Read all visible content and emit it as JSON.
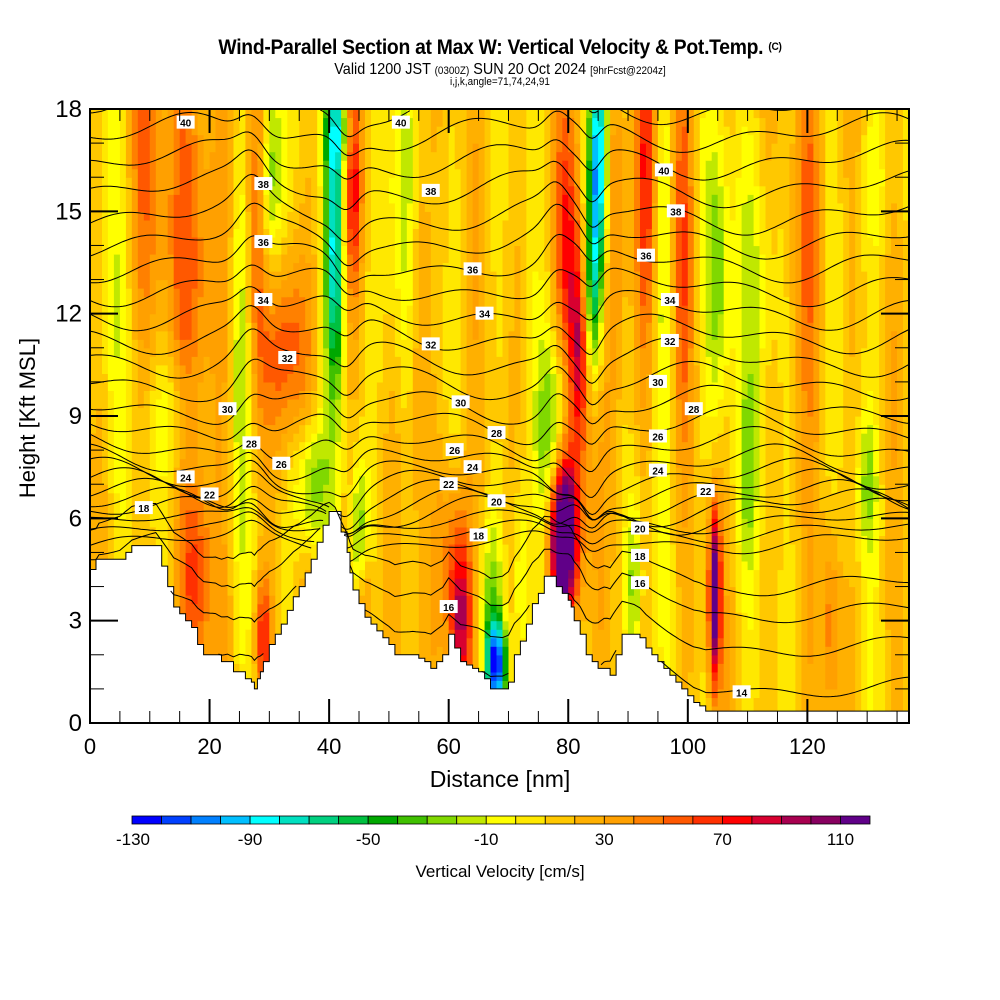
{
  "header": {
    "title": "Wind-Parallel Section at Max W: Vertical Velocity & Pot.Temp.",
    "copyright": "(C)",
    "valid_prefix": "Valid 1200 JST",
    "valid_utc": "(0300Z)",
    "valid_date": "SUN 20 Oct 2024",
    "forecast": "[9hrFcst@2204z]",
    "indices": "i,j,k,angle=71,74,24,91"
  },
  "chart_data": {
    "type": "heatmap",
    "title": "Wind-Parallel Section at Max W: Vertical Velocity & Pot.Temp.",
    "xlabel": "Distance [nm]",
    "ylabel": "Height [Kft MSL]",
    "xlim": [
      0,
      137
    ],
    "ylim": [
      0,
      18
    ],
    "xticks": [
      0,
      20,
      40,
      60,
      80,
      100,
      120
    ],
    "yticks": [
      0,
      3,
      6,
      9,
      12,
      15,
      18
    ],
    "colorbar": {
      "label": "Vertical Velocity [cm/s]",
      "tick_labels": [
        "-130",
        "-90",
        "-50",
        "-10",
        "30",
        "70",
        "110"
      ],
      "levels": [
        -130,
        -120,
        -110,
        -100,
        -90,
        -80,
        -70,
        -60,
        -50,
        -40,
        -30,
        -20,
        -10,
        0,
        10,
        20,
        30,
        40,
        50,
        60,
        70,
        80,
        90,
        100,
        110,
        120
      ],
      "colors": [
        "#0000ff",
        "#0040ff",
        "#0080ff",
        "#00bfff",
        "#00ffff",
        "#00e0c0",
        "#00d080",
        "#00c040",
        "#00a800",
        "#40c000",
        "#80d800",
        "#c0e800",
        "#ffff00",
        "#ffe800",
        "#ffc800",
        "#ffb000",
        "#ffa000",
        "#ff8000",
        "#ff5800",
        "#ff3000",
        "#ff0000",
        "#d80030",
        "#a80050",
        "#880060",
        "#600088"
      ]
    },
    "background_w": 15,
    "w_features": [
      {
        "x": 4,
        "z": 14,
        "sx": 2.5,
        "sz": 5,
        "w": -25
      },
      {
        "x": 8,
        "z": 16,
        "sx": 3,
        "sz": 4,
        "w": 30
      },
      {
        "x": 18,
        "z": 14,
        "sx": 4,
        "sz": 5,
        "w": 35
      },
      {
        "x": 18,
        "z": 4,
        "sx": 2,
        "sz": 2,
        "w": 40
      },
      {
        "x": 14,
        "z": 9,
        "sx": 3,
        "sz": 1.5,
        "w": -25
      },
      {
        "x": 25,
        "z": 11,
        "sx": 1.2,
        "sz": 5,
        "w": -30
      },
      {
        "x": 28,
        "z": 15,
        "sx": 1.3,
        "sz": 4,
        "w": 45
      },
      {
        "x": 30,
        "z": 16,
        "sx": 1.5,
        "sz": 2.5,
        "w": -60
      },
      {
        "x": 29,
        "z": 2.5,
        "sx": 1,
        "sz": 1.2,
        "w": 55
      },
      {
        "x": 33,
        "z": 11,
        "sx": 2.5,
        "sz": 2,
        "w": 45
      },
      {
        "x": 37,
        "z": 7,
        "sx": 2,
        "sz": 1.5,
        "w": -50
      },
      {
        "x": 41,
        "z": 14,
        "sx": 1.1,
        "sz": 3,
        "w": -90
      },
      {
        "x": 42,
        "z": 17.5,
        "sx": 2,
        "sz": 1,
        "w": -60
      },
      {
        "x": 44,
        "z": 17,
        "sx": 1.2,
        "sz": 3,
        "w": 65
      },
      {
        "x": 45,
        "z": 5.5,
        "sx": 1,
        "sz": 1.5,
        "w": -45
      },
      {
        "x": 46,
        "z": 3.5,
        "sx": 1,
        "sz": 1.5,
        "w": 35
      },
      {
        "x": 52,
        "z": 15,
        "sx": 3,
        "sz": 4,
        "w": -30
      },
      {
        "x": 55,
        "z": 13,
        "sx": 1.2,
        "sz": 5,
        "w": 35
      },
      {
        "x": 62,
        "z": 2.8,
        "sx": 1.3,
        "sz": 1.6,
        "w": 75
      },
      {
        "x": 61,
        "z": 5,
        "sx": 2,
        "sz": 2,
        "w": 40
      },
      {
        "x": 68,
        "z": 1.7,
        "sx": 1.2,
        "sz": 0.9,
        "w": -120
      },
      {
        "x": 67,
        "z": 3.5,
        "sx": 1.5,
        "sz": 2,
        "w": -40
      },
      {
        "x": 72,
        "z": 4,
        "sx": 1,
        "sz": 2.5,
        "w": -35
      },
      {
        "x": 79,
        "z": 5.5,
        "sx": 1.4,
        "sz": 1.4,
        "w": 110
      },
      {
        "x": 80,
        "z": 6,
        "sx": 2,
        "sz": 2.5,
        "w": 70
      },
      {
        "x": 78,
        "z": 8.5,
        "sx": 2,
        "sz": 2,
        "w": -60
      },
      {
        "x": 82,
        "z": 11,
        "sx": 1.2,
        "sz": 2,
        "w": 70
      },
      {
        "x": 80,
        "z": 14,
        "sx": 1.5,
        "sz": 3,
        "w": 50
      },
      {
        "x": 85,
        "z": 16.5,
        "sx": 1.1,
        "sz": 2.5,
        "w": -125
      },
      {
        "x": 84,
        "z": 12.5,
        "sx": 1.1,
        "sz": 2,
        "w": -70
      },
      {
        "x": 88,
        "z": 15,
        "sx": 1.3,
        "sz": 4,
        "w": 40
      },
      {
        "x": 91,
        "z": 4,
        "sx": 1,
        "sz": 2,
        "w": -40
      },
      {
        "x": 93,
        "z": 16,
        "sx": 1.5,
        "sz": 4,
        "w": 50
      },
      {
        "x": 96,
        "z": 14,
        "sx": 1.3,
        "sz": 4,
        "w": -30
      },
      {
        "x": 99,
        "z": 14,
        "sx": 1.3,
        "sz": 4,
        "w": 35
      },
      {
        "x": 104.5,
        "z": 3.7,
        "sx": 0.7,
        "sz": 1.8,
        "w": 115
      },
      {
        "x": 105,
        "z": 13,
        "sx": 1.5,
        "sz": 3,
        "w": -40
      },
      {
        "x": 110,
        "z": 7,
        "sx": 1.5,
        "sz": 2,
        "w": -25
      },
      {
        "x": 112,
        "z": 13,
        "sx": 3,
        "sz": 3,
        "w": -25
      },
      {
        "x": 120,
        "z": 15,
        "sx": 2,
        "sz": 4,
        "w": 35
      },
      {
        "x": 124,
        "z": 3,
        "sx": 1,
        "sz": 2,
        "w": 35
      },
      {
        "x": 130,
        "z": 7,
        "sx": 1.3,
        "sz": 1.5,
        "w": -30
      },
      {
        "x": 132,
        "z": 16,
        "sx": 2,
        "sz": 2,
        "w": -20
      }
    ],
    "terrain": {
      "x": [
        0,
        1,
        1,
        3,
        3,
        5,
        5,
        6,
        7,
        8,
        9,
        10,
        11,
        12,
        13,
        14,
        15,
        16,
        17,
        18,
        19,
        20,
        21,
        22,
        23,
        24,
        25,
        26,
        27,
        27.5,
        28,
        28.5,
        29,
        30,
        31,
        32,
        33,
        34,
        35,
        36,
        37,
        38,
        39,
        40,
        40.5,
        41,
        42,
        43,
        43.5,
        44,
        45,
        46,
        47,
        48,
        49,
        50,
        51,
        52,
        53,
        54,
        55,
        56,
        57,
        58,
        59,
        60,
        61,
        62,
        63,
        64,
        65,
        66,
        67,
        68,
        69,
        70,
        71,
        72,
        73,
        74,
        75,
        76,
        77,
        78,
        79,
        80,
        80.5,
        81,
        82,
        83,
        84,
        85,
        86,
        87,
        88,
        89,
        90,
        91,
        92,
        93,
        94,
        95,
        96,
        97,
        98,
        99,
        100,
        101,
        102,
        103,
        104,
        105,
        106,
        107,
        110,
        115,
        120,
        125,
        130,
        135,
        137
      ],
      "z": [
        4.5,
        4.5,
        4.8,
        4.8,
        4.8,
        4.8,
        4.8,
        5.0,
        5.2,
        5.2,
        5.2,
        5.2,
        5.2,
        4.6,
        4.0,
        3.4,
        3.2,
        3.0,
        2.8,
        2.3,
        2.0,
        2.0,
        2.0,
        1.8,
        1.8,
        1.5,
        1.5,
        1.3,
        1.2,
        1.0,
        1.3,
        1.5,
        1.8,
        2.3,
        2.6,
        2.9,
        3.3,
        3.7,
        4.0,
        4.4,
        4.8,
        5.3,
        5.8,
        6.2,
        6.2,
        6.2,
        5.6,
        5.0,
        4.4,
        3.9,
        3.5,
        3.1,
        2.9,
        2.7,
        2.5,
        2.3,
        2.0,
        2.0,
        2.0,
        2.0,
        1.9,
        1.8,
        1.6,
        1.8,
        2.0,
        2.6,
        2.2,
        1.8,
        1.7,
        1.6,
        1.5,
        1.3,
        1.0,
        1.0,
        1.0,
        1.2,
        2.0,
        2.4,
        2.9,
        3.5,
        3.8,
        4.3,
        4.3,
        4.0,
        3.8,
        3.6,
        3.4,
        3.0,
        2.6,
        2.0,
        1.8,
        1.6,
        1.6,
        1.4,
        2.0,
        2.6,
        2.6,
        2.6,
        2.5,
        2.2,
        2.0,
        1.8,
        1.6,
        1.4,
        1.2,
        1.0,
        0.8,
        0.6,
        0.5,
        0.35,
        0.35,
        0.35,
        0.35,
        0.35,
        0.35,
        0.35,
        0.35,
        0.35,
        0.35,
        0.35,
        0.35,
        0.35,
        0.35,
        0.35
      ]
    },
    "isentropes": {
      "units": "Pot.Temp contour labels",
      "levels": [
        14,
        15,
        16,
        17,
        18,
        19,
        20,
        21,
        22,
        23,
        24,
        25,
        26,
        27,
        28,
        29,
        30,
        31,
        32,
        33,
        34,
        35,
        36,
        37,
        38,
        39,
        40,
        41,
        42
      ],
      "base_height": [
        0.5,
        1.8,
        3.0,
        4.0,
        4.8,
        5.3,
        5.6,
        5.9,
        6.1,
        6.35,
        6.6,
        6.9,
        7.2,
        7.6,
        8.1,
        8.7,
        9.3,
        10.0,
        10.7,
        11.4,
        12.1,
        12.8,
        13.5,
        14.2,
        14.9,
        15.7,
        16.5,
        17.3,
        18.1
      ],
      "labels": [
        {
          "text": "40",
          "x": 16,
          "z": 17.6
        },
        {
          "text": "40",
          "x": 52,
          "z": 17.6
        },
        {
          "text": "40",
          "x": 96,
          "z": 16.2
        },
        {
          "text": "38",
          "x": 29,
          "z": 15.8
        },
        {
          "text": "38",
          "x": 57,
          "z": 15.6
        },
        {
          "text": "38",
          "x": 98,
          "z": 15.0
        },
        {
          "text": "36",
          "x": 29,
          "z": 14.1
        },
        {
          "text": "36",
          "x": 64,
          "z": 13.3
        },
        {
          "text": "36",
          "x": 93,
          "z": 13.7
        },
        {
          "text": "34",
          "x": 29,
          "z": 12.4
        },
        {
          "text": "34",
          "x": 66,
          "z": 12.0
        },
        {
          "text": "34",
          "x": 97,
          "z": 12.4
        },
        {
          "text": "32",
          "x": 33,
          "z": 10.7
        },
        {
          "text": "32",
          "x": 57,
          "z": 11.1
        },
        {
          "text": "32",
          "x": 97,
          "z": 11.2
        },
        {
          "text": "30",
          "x": 23,
          "z": 9.2
        },
        {
          "text": "30",
          "x": 62,
          "z": 9.4
        },
        {
          "text": "30",
          "x": 95,
          "z": 10.0
        },
        {
          "text": "28",
          "x": 27,
          "z": 8.2
        },
        {
          "text": "28",
          "x": 68,
          "z": 8.5
        },
        {
          "text": "28",
          "x": 101,
          "z": 9.2
        },
        {
          "text": "26",
          "x": 32,
          "z": 7.6
        },
        {
          "text": "26",
          "x": 61,
          "z": 8.0
        },
        {
          "text": "26",
          "x": 95,
          "z": 8.4
        },
        {
          "text": "24",
          "x": 16,
          "z": 7.2
        },
        {
          "text": "24",
          "x": 64,
          "z": 7.5
        },
        {
          "text": "24",
          "x": 95,
          "z": 7.4
        },
        {
          "text": "22",
          "x": 20,
          "z": 6.7
        },
        {
          "text": "22",
          "x": 60,
          "z": 7.0
        },
        {
          "text": "22",
          "x": 103,
          "z": 6.8
        },
        {
          "text": "20",
          "x": 68,
          "z": 6.5
        },
        {
          "text": "20",
          "x": 92,
          "z": 5.7
        },
        {
          "text": "18",
          "x": 9,
          "z": 6.3
        },
        {
          "text": "18",
          "x": 65,
          "z": 5.5
        },
        {
          "text": "18",
          "x": 92,
          "z": 4.9
        },
        {
          "text": "16",
          "x": 60,
          "z": 3.4
        },
        {
          "text": "16",
          "x": 92,
          "z": 4.1
        },
        {
          "text": "14",
          "x": 109,
          "z": 0.9
        }
      ]
    }
  }
}
